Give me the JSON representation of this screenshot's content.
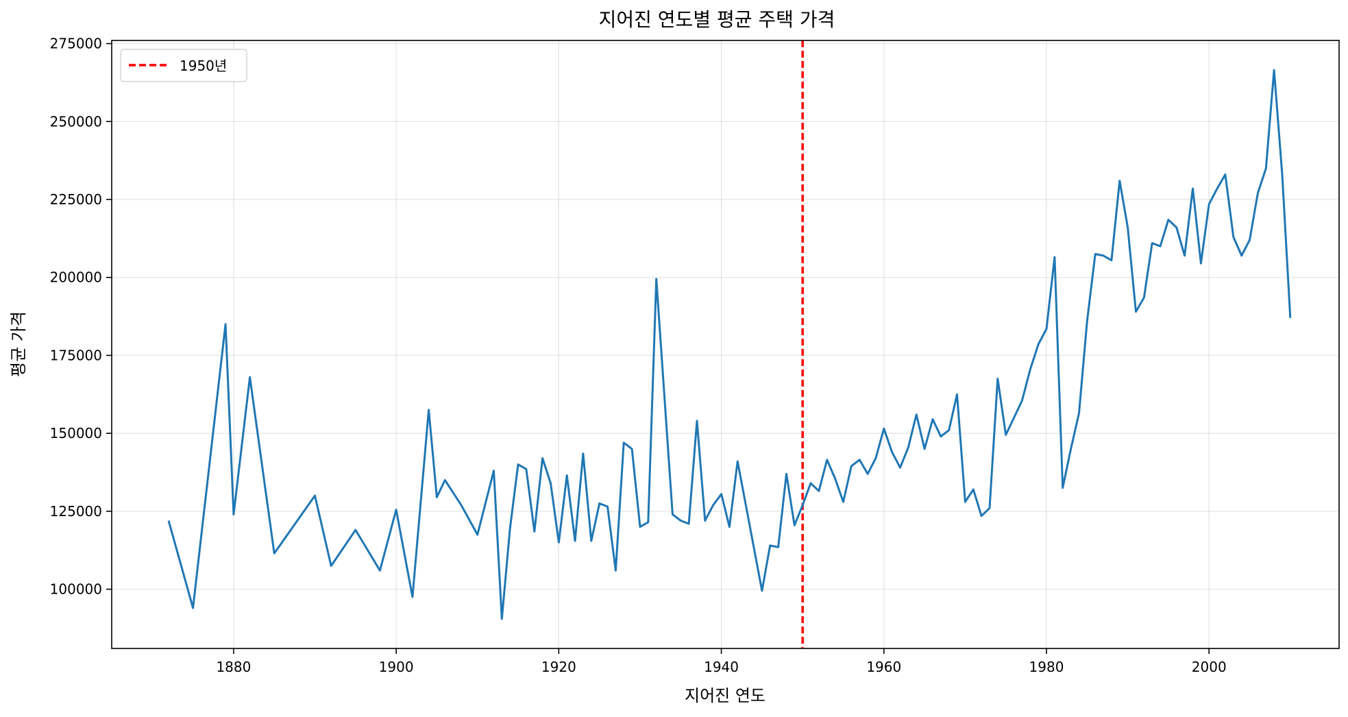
{
  "chart_data": {
    "type": "line",
    "title": "지어진 연도별 평균 주택 가격",
    "xlabel": "지어진 연도",
    "ylabel": "평균 가격",
    "xlim": [
      1865,
      2016
    ],
    "ylim": [
      81000,
      276000
    ],
    "x_ticks": [
      "1880",
      "1900",
      "1920",
      "1940",
      "1960",
      "1980",
      "2000"
    ],
    "y_ticks": [
      "100000",
      "125000",
      "150000",
      "175000",
      "200000",
      "225000",
      "250000",
      "275000"
    ],
    "grid": true,
    "legend_position": "top-left",
    "series": [
      {
        "color": "#1f77b4",
        "x": [
          1872,
          1875,
          1879,
          1880,
          1882,
          1885,
          1890,
          1892,
          1895,
          1898,
          1900,
          1902,
          1904,
          1905,
          1906,
          1908,
          1910,
          1912,
          1913,
          1914,
          1915,
          1916,
          1917,
          1918,
          1919,
          1920,
          1921,
          1922,
          1923,
          1924,
          1925,
          1926,
          1927,
          1928,
          1929,
          1930,
          1931,
          1932,
          1934,
          1935,
          1936,
          1937,
          1938,
          1939,
          1940,
          1941,
          1942,
          1945,
          1946,
          1947,
          1948,
          1949,
          1950,
          1951,
          1952,
          1953,
          1954,
          1955,
          1956,
          1957,
          1958,
          1959,
          1960,
          1961,
          1962,
          1963,
          1964,
          1965,
          1966,
          1967,
          1968,
          1969,
          1970,
          1971,
          1972,
          1973,
          1974,
          1975,
          1976,
          1977,
          1978,
          1979,
          1980,
          1981,
          1982,
          1983,
          1984,
          1985,
          1986,
          1987,
          1988,
          1989,
          1990,
          1991,
          1992,
          1993,
          1994,
          1995,
          1996,
          1997,
          1998,
          1999,
          2000,
          2001,
          2002,
          2003,
          2004,
          2005,
          2006,
          2007,
          2008,
          2009,
          2010
        ],
        "y": [
          122000,
          94000,
          185000,
          124000,
          168000,
          111500,
          130000,
          107500,
          119000,
          106000,
          125500,
          97500,
          157500,
          129500,
          135000,
          127000,
          117500,
          138000,
          90500,
          119500,
          140000,
          138500,
          118500,
          142000,
          134000,
          115000,
          136500,
          115500,
          143500,
          115500,
          127500,
          126500,
          106000,
          147000,
          145000,
          120000,
          121500,
          199500,
          124000,
          122000,
          121000,
          154000,
          122000,
          127000,
          130500,
          120000,
          141000,
          99500,
          114000,
          113500,
          137000,
          120500,
          127000,
          134000,
          131500,
          141500,
          135500,
          128000,
          139500,
          141500,
          137000,
          142000,
          151500,
          144000,
          139000,
          145500,
          156000,
          145000,
          154500,
          149000,
          151000,
          162500,
          128000,
          132000,
          123500,
          126000,
          167500,
          149500,
          155000,
          160500,
          170500,
          178500,
          183500,
          206500,
          132500,
          145000,
          156500,
          186000,
          207500,
          207000,
          205500,
          231000,
          216000,
          189000,
          193500,
          211000,
          210000,
          218500,
          216000,
          207000,
          228500,
          204500,
          223500,
          228500,
          233000,
          213000,
          207000,
          212000,
          227000,
          235000,
          266500,
          233000,
          187000
        ]
      }
    ],
    "reference_line": {
      "x": 1950,
      "color": "#ff0000",
      "label": "1950년"
    }
  }
}
